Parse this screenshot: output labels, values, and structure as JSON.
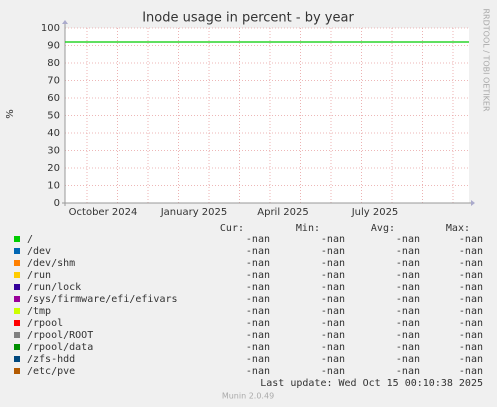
{
  "chart_data": {
    "type": "line",
    "title": "Inode usage in percent - by year",
    "y_label": "%",
    "side_label": "RRDTOOL / TOBI OETIKER",
    "x": [
      null,
      "October 2024",
      "January 2025",
      "April 2025",
      "July 2025",
      null
    ],
    "ylim": [
      0,
      100
    ],
    "yticks": [
      0,
      10,
      20,
      30,
      40,
      50,
      60,
      70,
      80,
      90,
      100
    ],
    "grid": true,
    "legend_headers": [
      "Cur:",
      "Min:",
      "Avg:",
      "Max:"
    ],
    "series": [
      {
        "name": "/",
        "color": "#00cc00",
        "values": [
          92,
          92,
          92,
          92,
          92,
          92
        ],
        "stats": [
          "-nan",
          "-nan",
          "-nan",
          "-nan"
        ]
      },
      {
        "name": "/dev",
        "color": "#0066b3",
        "stats": [
          "-nan",
          "-nan",
          "-nan",
          "-nan"
        ]
      },
      {
        "name": "/dev/shm",
        "color": "#ff8000",
        "stats": [
          "-nan",
          "-nan",
          "-nan",
          "-nan"
        ]
      },
      {
        "name": "/run",
        "color": "#ffcc00",
        "stats": [
          "-nan",
          "-nan",
          "-nan",
          "-nan"
        ]
      },
      {
        "name": "/run/lock",
        "color": "#330099",
        "stats": [
          "-nan",
          "-nan",
          "-nan",
          "-nan"
        ]
      },
      {
        "name": "/sys/firmware/efi/efivars",
        "color": "#990099",
        "stats": [
          "-nan",
          "-nan",
          "-nan",
          "-nan"
        ]
      },
      {
        "name": "/tmp",
        "color": "#ccff00",
        "stats": [
          "-nan",
          "-nan",
          "-nan",
          "-nan"
        ]
      },
      {
        "name": "/rpool",
        "color": "#ff0000",
        "stats": [
          "-nan",
          "-nan",
          "-nan",
          "-nan"
        ]
      },
      {
        "name": "/rpool/ROOT",
        "color": "#808080",
        "stats": [
          "-nan",
          "-nan",
          "-nan",
          "-nan"
        ]
      },
      {
        "name": "/rpool/data",
        "color": "#008f00",
        "stats": [
          "-nan",
          "-nan",
          "-nan",
          "-nan"
        ]
      },
      {
        "name": "/zfs-hdd",
        "color": "#00487d",
        "stats": [
          "-nan",
          "-nan",
          "-nan",
          "-nan"
        ]
      },
      {
        "name": "/etc/pve",
        "color": "#b35a00",
        "stats": [
          "-nan",
          "-nan",
          "-nan",
          "-nan"
        ]
      }
    ],
    "last_update": "Last update: Wed Oct 15 00:10:38 2025",
    "footer": "Munin 2.0.49"
  }
}
